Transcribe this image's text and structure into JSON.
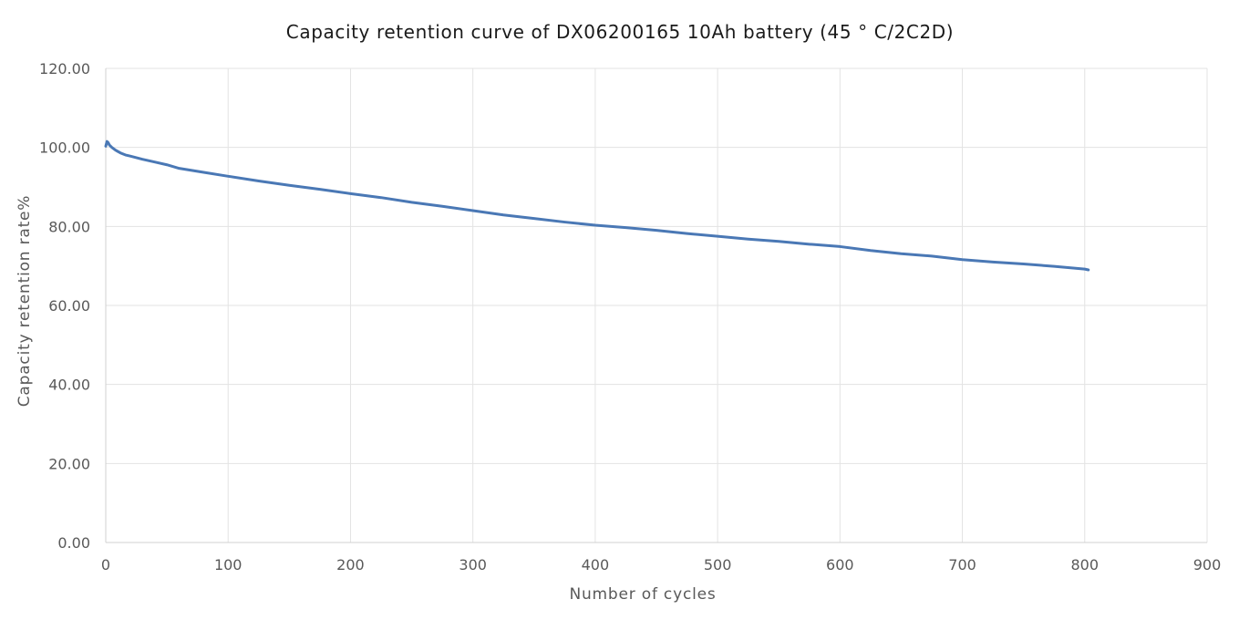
{
  "chart_data": {
    "type": "line",
    "title": "Capacity retention curve of DX06200165 10Ah battery (45 ° C/2C2D)",
    "xlabel": "Number of cycles",
    "ylabel": "Capacity retention rate%",
    "xlim": [
      0,
      900
    ],
    "ylim": [
      0,
      120
    ],
    "x_ticks": [
      "0",
      "100",
      "200",
      "300",
      "400",
      "500",
      "600",
      "700",
      "800",
      "900"
    ],
    "y_ticks": [
      "0.00",
      "20.00",
      "40.00",
      "60.00",
      "80.00",
      "100.00",
      "120.00"
    ],
    "grid": true,
    "legend": "none",
    "series": [
      {
        "color": "#4a78b5",
        "x": [
          0,
          1,
          2,
          3,
          5,
          8,
          12,
          16,
          20,
          30,
          40,
          50,
          60,
          80,
          100,
          125,
          150,
          175,
          200,
          225,
          250,
          275,
          300,
          325,
          350,
          375,
          400,
          425,
          450,
          475,
          500,
          525,
          550,
          575,
          600,
          625,
          650,
          675,
          700,
          725,
          750,
          775,
          800,
          803
        ],
        "y": [
          100.3,
          101.5,
          101.2,
          100.6,
          100.0,
          99.3,
          98.6,
          98.1,
          97.8,
          97.0,
          96.3,
          95.6,
          94.7,
          93.7,
          92.7,
          91.5,
          90.4,
          89.4,
          88.3,
          87.3,
          86.1,
          85.1,
          84.0,
          82.9,
          82.0,
          81.1,
          80.3,
          79.7,
          79.0,
          78.2,
          77.5,
          76.8,
          76.2,
          75.5,
          74.9,
          73.9,
          73.1,
          72.5,
          71.6,
          71.0,
          70.5,
          69.9,
          69.2,
          69.0
        ]
      }
    ]
  }
}
